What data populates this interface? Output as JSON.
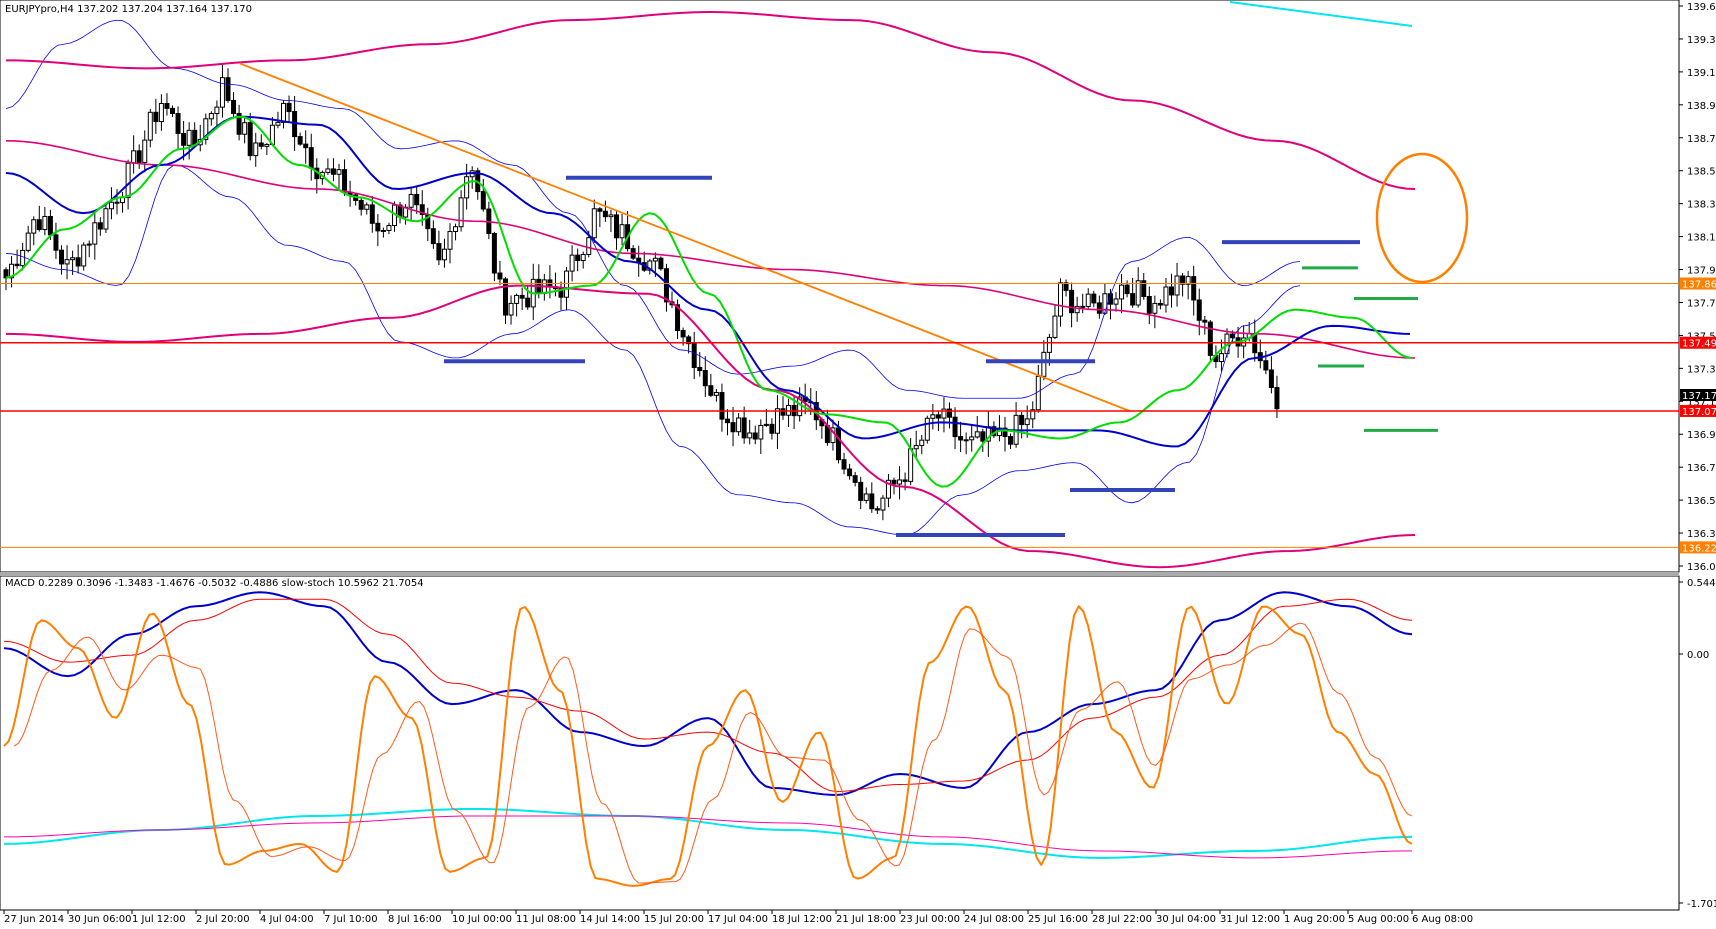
{
  "header": {
    "symbol": "EURJPYpro,H4",
    "ohlc": "137.202 137.204 137.164 137.170"
  },
  "colors": {
    "background": "#ffffff",
    "bull_candle": "#ffffff",
    "bear_candle": "#000000",
    "fast_ma": "#00dd00",
    "mid_ma": "#0000cc",
    "slow_ma": "#e0007a",
    "bollinger": "#0000ff",
    "orange": "#ff7f00",
    "red": "#ff0000",
    "support_blue": "#3344bb",
    "support_green": "#22aa44",
    "cyan": "#00e5ee",
    "pink": "#ff00aa"
  },
  "price_axis": {
    "ticks": [
      "139.600",
      "139.390",
      "139.185",
      "138.980",
      "138.775",
      "138.565",
      "138.360",
      "138.155",
      "137.950",
      "137.745",
      "137.535",
      "137.330",
      "137.125",
      "136.920",
      "136.715",
      "136.505",
      "136.300",
      "136.095"
    ],
    "labels": [
      {
        "text": "137.863",
        "kind": "orange"
      },
      {
        "text": "137.495",
        "kind": "red"
      },
      {
        "text": "137.170",
        "kind": "current"
      },
      {
        "text": "137.071",
        "kind": "red"
      },
      {
        "text": "136.223",
        "kind": "orange"
      }
    ]
  },
  "time_axis": [
    "27 Jun 2014",
    "30 Jun 06:00",
    "1 Jul 12:00",
    "2 Jul 20:00",
    "4 Jul 04:00",
    "7 Jul 10:00",
    "8 Jul 16:00",
    "10 Jul 00:00",
    "11 Jul 08:00",
    "14 Jul 14:00",
    "15 Jul 20:00",
    "17 Jul 04:00",
    "18 Jul 12:00",
    "21 Jul 18:00",
    "23 Jul 00:00",
    "24 Jul 08:00",
    "25 Jul 16:00",
    "28 Jul 22:00",
    "30 Jul 04:00",
    "31 Jul 12:00",
    "1 Aug 20:00",
    "5 Aug 00:00",
    "6 Aug 08:00"
  ],
  "sub": {
    "title": "MACD 0.2289 0.3096 -1.3483 -1.4676 -0.5032 -0.4886  slow-stoch 10.5962 21.7054",
    "ticks": [
      "0.5448",
      "0.00",
      "-1.7012"
    ]
  },
  "chart_data": [
    {
      "type": "candlestick",
      "title": "EURJPYpro,H4 137.202 137.204 137.164 137.170",
      "ylim": [
        136.095,
        139.6
      ],
      "levels": {
        "orange": [
          137.863,
          136.223
        ],
        "red": [
          137.495,
          137.071
        ]
      },
      "current": 137.17,
      "close_path": [
        137.9,
        138.3,
        137.95,
        138.25,
        138.55,
        139.0,
        138.7,
        139.1,
        138.65,
        138.95,
        138.6,
        138.45,
        138.2,
        138.4,
        137.95,
        138.65,
        137.75,
        137.8,
        137.85,
        138.3,
        138.15,
        137.95,
        137.5,
        137.1,
        136.95,
        137.05,
        137.1,
        136.8,
        136.45,
        136.7,
        137.05,
        136.85,
        136.9,
        137.0,
        137.8,
        137.7,
        137.85,
        137.75,
        137.9,
        137.4,
        137.6,
        137.17
      ],
      "series": [
        {
          "name": "fast MA",
          "values": [
            137.9,
            138.2,
            138.4,
            138.7,
            138.9,
            138.6,
            138.4,
            138.25,
            138.5,
            137.8,
            137.85,
            138.3,
            137.8,
            137.2,
            137.05,
            137.0,
            136.6,
            136.95,
            136.9,
            137.0,
            137.2,
            137.5,
            137.7,
            137.65,
            137.4
          ]
        },
        {
          "name": "mid MA",
          "values": [
            138.55,
            138.3,
            138.6,
            138.9,
            138.85,
            138.45,
            138.55,
            138.3,
            138.0,
            137.7,
            137.2,
            136.9,
            137.0,
            136.95,
            136.95,
            136.85,
            137.4,
            137.6,
            137.55
          ]
        },
        {
          "name": "slow MA",
          "values": [
            138.75,
            138.6,
            138.45,
            138.25,
            138.05,
            137.95,
            137.85,
            137.7,
            137.55,
            137.4
          ]
        }
      ]
    },
    {
      "type": "line",
      "title": "MACD 0.2289 0.3096 -1.3483 -1.4676 -0.5032 -0.4886  slow-stoch 10.5962 21.7054",
      "ylim": [
        -1.7012,
        0.5448
      ],
      "series": [
        {
          "values": [
            0.1,
            -0.1,
            0.2,
            0.4,
            0.5,
            0.4,
            0.0,
            -0.3,
            -0.2,
            -0.5,
            -0.6,
            -0.4,
            -0.9,
            -0.95,
            -0.8,
            -0.9,
            -0.5,
            -0.3,
            -0.2,
            0.3,
            0.5,
            0.4,
            0.2
          ]
        },
        {
          "values": [
            -1.3,
            -1.2,
            -1.1,
            -1.05,
            -1.1,
            -1.2,
            -1.3,
            -1.4,
            -1.35,
            -1.25
          ]
        }
      ]
    }
  ]
}
